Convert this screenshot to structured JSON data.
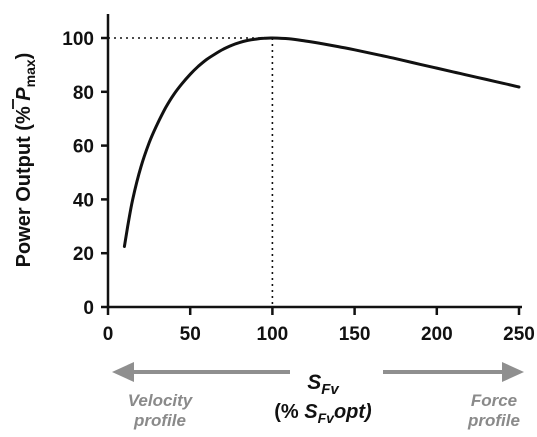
{
  "chart_data": {
    "type": "line",
    "xlim": [
      0,
      250
    ],
    "ylim": [
      0,
      110
    ],
    "x_ticks": [
      0,
      50,
      100,
      150,
      200,
      250
    ],
    "y_ticks": [
      0,
      20,
      40,
      60,
      80,
      100
    ],
    "grid": false,
    "legend": "none",
    "title": "",
    "ylabel": {
      "prefix": "Power Output (% ",
      "symbol": "P",
      "subscript": "max",
      "suffix": ")"
    },
    "xlabel": {
      "symbol": "S",
      "symbol_sub": "Fv",
      "line2_prefix": "(% ",
      "line2_symbol": "S",
      "line2_sub": "Fv",
      "line2_suffix": "opt)"
    },
    "reference_point": {
      "x": 100,
      "y": 100
    },
    "series": [
      {
        "x": [
          10,
          12,
          15,
          20,
          25,
          30,
          35,
          40,
          45,
          50,
          55,
          60,
          65,
          70,
          75,
          80,
          85,
          90,
          95,
          100,
          110,
          120,
          130,
          140,
          150,
          160,
          170,
          180,
          190,
          200,
          210,
          220,
          230,
          240,
          250
        ],
        "values": [
          22.5,
          30,
          40,
          52,
          61,
          68,
          74,
          79,
          83,
          86.5,
          89.5,
          92,
          94,
          95.8,
          97.2,
          98.3,
          99.1,
          99.6,
          99.9,
          100,
          99.7,
          98.9,
          97.9,
          96.8,
          95.6,
          94.3,
          93,
          91.6,
          90.2,
          88.8,
          87.4,
          86,
          84.6,
          83.2,
          81.8
        ]
      }
    ],
    "annotations": {
      "left": [
        "Velocity",
        "profile"
      ],
      "right": [
        "Force",
        "profile"
      ]
    }
  },
  "colors": {
    "curve": "#111111",
    "arrows": "#8f8f8f",
    "annotation_text": "#8a8a8a"
  }
}
